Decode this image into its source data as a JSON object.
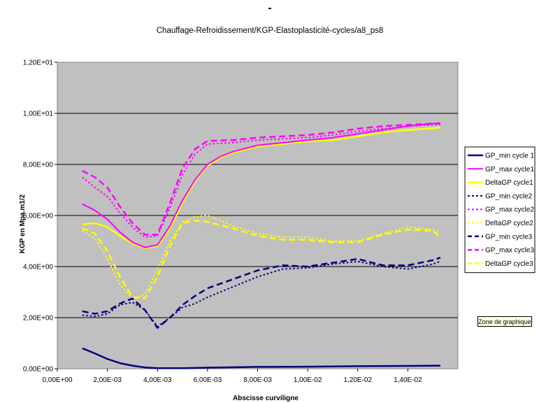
{
  "chart_data": {
    "type": "line",
    "title": "Chauffage-Refroidissement/KGP-Elastoplasticité-cycles/a8_ps8",
    "xlabel": "Abscisse curviligne",
    "ylabel": "KGP en Mpa.m1/2",
    "xlim": [
      0,
      0.016
    ],
    "ylim": [
      0,
      12
    ],
    "x_ticks": [
      "0,00E+00",
      "2,00E-03",
      "4,00E-03",
      "6,00E-03",
      "8,00E-03",
      "1,00E-02",
      "1,20E-02",
      "1,40E-02"
    ],
    "y_ticks": [
      "0,00E+00",
      "2,00E+00",
      "4,00E+00",
      "6,00E+00",
      "8,00E+00",
      "1,00E+01",
      "1,20E+01"
    ],
    "grid": "horizontal",
    "plot_background": "#c0c0c0",
    "legend_position": "right",
    "series": [
      {
        "name": "GP_min cycle 1",
        "color": "#000080",
        "style": "solid",
        "width": 2.5,
        "points": [
          [
            0.001,
            0.8
          ],
          [
            0.0015,
            0.6
          ],
          [
            0.002,
            0.38
          ],
          [
            0.0025,
            0.22
          ],
          [
            0.003,
            0.12
          ],
          [
            0.0035,
            0.05
          ],
          [
            0.004,
            0.02
          ],
          [
            0.005,
            0.02
          ],
          [
            0.006,
            0.04
          ],
          [
            0.008,
            0.07
          ],
          [
            0.01,
            0.08
          ],
          [
            0.012,
            0.1
          ],
          [
            0.014,
            0.11
          ],
          [
            0.0153,
            0.12
          ]
        ]
      },
      {
        "name": "GP_max cycle1",
        "color": "#ff00ff",
        "style": "solid",
        "width": 2,
        "points": [
          [
            0.001,
            6.45
          ],
          [
            0.0015,
            6.2
          ],
          [
            0.002,
            5.85
          ],
          [
            0.0025,
            5.35
          ],
          [
            0.003,
            4.95
          ],
          [
            0.0035,
            4.75
          ],
          [
            0.004,
            4.85
          ],
          [
            0.0045,
            5.6
          ],
          [
            0.005,
            6.6
          ],
          [
            0.0055,
            7.4
          ],
          [
            0.006,
            8.0
          ],
          [
            0.0065,
            8.3
          ],
          [
            0.007,
            8.5
          ],
          [
            0.008,
            8.75
          ],
          [
            0.009,
            8.85
          ],
          [
            0.01,
            8.95
          ],
          [
            0.011,
            9.05
          ],
          [
            0.012,
            9.2
          ],
          [
            0.013,
            9.35
          ],
          [
            0.014,
            9.5
          ],
          [
            0.015,
            9.6
          ],
          [
            0.0153,
            9.62
          ]
        ]
      },
      {
        "name": "DeltaGP cycle1",
        "color": "#ffff00",
        "style": "solid",
        "width": 2.5,
        "points": [
          [
            0.001,
            5.65
          ],
          [
            0.0015,
            5.7
          ],
          [
            0.002,
            5.55
          ],
          [
            0.0025,
            5.2
          ],
          [
            0.003,
            4.9
          ],
          [
            0.0035,
            4.72
          ],
          [
            0.004,
            4.8
          ],
          [
            0.0045,
            5.5
          ],
          [
            0.005,
            6.5
          ],
          [
            0.0055,
            7.35
          ],
          [
            0.006,
            7.95
          ],
          [
            0.0065,
            8.25
          ],
          [
            0.007,
            8.45
          ],
          [
            0.008,
            8.7
          ],
          [
            0.009,
            8.8
          ],
          [
            0.01,
            8.9
          ],
          [
            0.011,
            8.95
          ],
          [
            0.012,
            9.1
          ],
          [
            0.013,
            9.25
          ],
          [
            0.014,
            9.35
          ],
          [
            0.015,
            9.42
          ],
          [
            0.0153,
            9.45
          ]
        ]
      },
      {
        "name": "GP_min cycle2",
        "color": "#000080",
        "style": "dotted",
        "width": 2,
        "points": [
          [
            0.001,
            2.1
          ],
          [
            0.0015,
            2.05
          ],
          [
            0.002,
            2.15
          ],
          [
            0.0025,
            2.5
          ],
          [
            0.003,
            2.6
          ],
          [
            0.0035,
            2.3
          ],
          [
            0.004,
            1.65
          ],
          [
            0.0045,
            2.0
          ],
          [
            0.005,
            2.4
          ],
          [
            0.0055,
            2.55
          ],
          [
            0.006,
            2.8
          ],
          [
            0.007,
            3.2
          ],
          [
            0.008,
            3.6
          ],
          [
            0.009,
            3.9
          ],
          [
            0.01,
            3.95
          ],
          [
            0.011,
            4.1
          ],
          [
            0.012,
            4.2
          ],
          [
            0.013,
            4.0
          ],
          [
            0.014,
            3.9
          ],
          [
            0.015,
            4.1
          ],
          [
            0.0153,
            4.2
          ]
        ]
      },
      {
        "name": "GP_max cycle2",
        "color": "#ff00ff",
        "style": "dotted",
        "width": 2,
        "points": [
          [
            0.001,
            7.5
          ],
          [
            0.0015,
            7.1
          ],
          [
            0.002,
            6.75
          ],
          [
            0.0025,
            6.1
          ],
          [
            0.003,
            5.55
          ],
          [
            0.0035,
            5.15
          ],
          [
            0.004,
            5.2
          ],
          [
            0.0045,
            6.3
          ],
          [
            0.005,
            7.6
          ],
          [
            0.0055,
            8.4
          ],
          [
            0.006,
            8.8
          ],
          [
            0.007,
            8.85
          ],
          [
            0.008,
            8.95
          ],
          [
            0.009,
            9.0
          ],
          [
            0.01,
            9.05
          ],
          [
            0.011,
            9.15
          ],
          [
            0.012,
            9.3
          ],
          [
            0.013,
            9.4
          ],
          [
            0.014,
            9.5
          ],
          [
            0.015,
            9.55
          ],
          [
            0.0153,
            9.57
          ]
        ]
      },
      {
        "name": "DeltaGP cycle2",
        "color": "#ffff00",
        "style": "dotted",
        "width": 2,
        "points": [
          [
            0.001,
            5.4
          ],
          [
            0.0015,
            5.1
          ],
          [
            0.002,
            4.3
          ],
          [
            0.0025,
            3.3
          ],
          [
            0.003,
            2.75
          ],
          [
            0.0035,
            2.9
          ],
          [
            0.004,
            3.9
          ],
          [
            0.0045,
            5.0
          ],
          [
            0.005,
            5.75
          ],
          [
            0.0055,
            5.95
          ],
          [
            0.006,
            6.0
          ],
          [
            0.007,
            5.6
          ],
          [
            0.008,
            5.3
          ],
          [
            0.009,
            5.15
          ],
          [
            0.01,
            5.15
          ],
          [
            0.011,
            5.0
          ],
          [
            0.012,
            5.0
          ],
          [
            0.013,
            5.3
          ],
          [
            0.014,
            5.55
          ],
          [
            0.015,
            5.45
          ],
          [
            0.0153,
            5.3
          ]
        ]
      },
      {
        "name": "GP_min cycle3",
        "color": "#000080",
        "style": "dashed",
        "width": 2.5,
        "points": [
          [
            0.001,
            2.25
          ],
          [
            0.0015,
            2.15
          ],
          [
            0.002,
            2.25
          ],
          [
            0.0025,
            2.55
          ],
          [
            0.003,
            2.75
          ],
          [
            0.0035,
            2.3
          ],
          [
            0.004,
            1.6
          ],
          [
            0.0045,
            2.0
          ],
          [
            0.005,
            2.5
          ],
          [
            0.0055,
            2.85
          ],
          [
            0.006,
            3.15
          ],
          [
            0.007,
            3.5
          ],
          [
            0.008,
            3.85
          ],
          [
            0.009,
            4.05
          ],
          [
            0.01,
            4.0
          ],
          [
            0.011,
            4.15
          ],
          [
            0.012,
            4.3
          ],
          [
            0.013,
            4.05
          ],
          [
            0.014,
            4.05
          ],
          [
            0.015,
            4.25
          ],
          [
            0.0153,
            4.35
          ]
        ]
      },
      {
        "name": "GP_max cycle3",
        "color": "#ff00ff",
        "style": "dashed",
        "width": 2.5,
        "points": [
          [
            0.001,
            7.75
          ],
          [
            0.0015,
            7.5
          ],
          [
            0.002,
            7.1
          ],
          [
            0.0025,
            6.35
          ],
          [
            0.003,
            5.7
          ],
          [
            0.0035,
            5.25
          ],
          [
            0.004,
            5.25
          ],
          [
            0.0045,
            6.5
          ],
          [
            0.005,
            7.85
          ],
          [
            0.0055,
            8.6
          ],
          [
            0.006,
            8.92
          ],
          [
            0.007,
            8.95
          ],
          [
            0.008,
            9.05
          ],
          [
            0.009,
            9.1
          ],
          [
            0.01,
            9.15
          ],
          [
            0.011,
            9.25
          ],
          [
            0.012,
            9.4
          ],
          [
            0.013,
            9.5
          ],
          [
            0.014,
            9.55
          ],
          [
            0.015,
            9.6
          ],
          [
            0.0153,
            9.6
          ]
        ]
      },
      {
        "name": "DeltaGP cycle3",
        "color": "#ffff00",
        "style": "dashed",
        "width": 2.5,
        "points": [
          [
            0.001,
            5.5
          ],
          [
            0.0015,
            5.3
          ],
          [
            0.002,
            4.6
          ],
          [
            0.0025,
            3.6
          ],
          [
            0.003,
            2.8
          ],
          [
            0.0035,
            2.75
          ],
          [
            0.004,
            3.6
          ],
          [
            0.0045,
            4.8
          ],
          [
            0.005,
            5.7
          ],
          [
            0.0055,
            5.8
          ],
          [
            0.006,
            5.75
          ],
          [
            0.007,
            5.5
          ],
          [
            0.008,
            5.2
          ],
          [
            0.009,
            5.05
          ],
          [
            0.01,
            5.05
          ],
          [
            0.011,
            4.95
          ],
          [
            0.012,
            4.95
          ],
          [
            0.013,
            5.25
          ],
          [
            0.014,
            5.45
          ],
          [
            0.015,
            5.4
          ],
          [
            0.0153,
            5.15
          ]
        ]
      }
    ]
  },
  "ui": {
    "header_mark": "-",
    "tooltip": "Zone de graphique"
  }
}
